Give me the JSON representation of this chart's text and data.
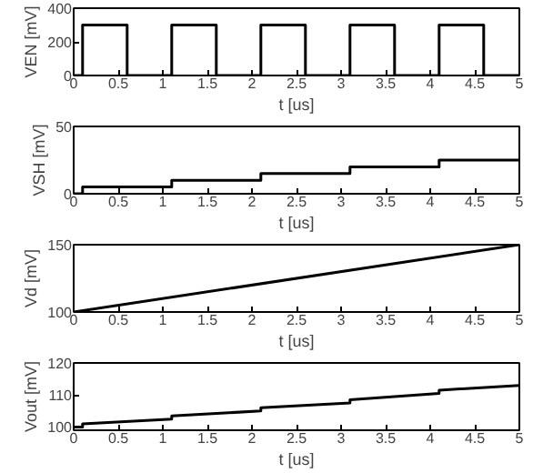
{
  "chart_data": [
    {
      "type": "line",
      "xlabel": "t [us]",
      "ylabel": "VEN [mV]",
      "xlim": [
        0,
        5
      ],
      "ylim": [
        0,
        400
      ],
      "xticks": [
        0,
        0.5,
        1,
        1.5,
        2,
        2.5,
        3,
        3.5,
        4,
        4.5,
        5
      ],
      "yticks": [
        0,
        200,
        400
      ],
      "grid": false,
      "series": [
        {
          "color": "#000000",
          "x": [
            0,
            0.1,
            0.1,
            0.6,
            0.6,
            1.1,
            1.1,
            1.6,
            1.6,
            2.1,
            2.1,
            2.6,
            2.6,
            3.1,
            3.1,
            3.6,
            3.6,
            4.1,
            4.1,
            4.6,
            4.6,
            5
          ],
          "values": [
            0,
            0,
            300,
            300,
            0,
            0,
            300,
            300,
            0,
            0,
            300,
            300,
            0,
            0,
            300,
            300,
            0,
            0,
            300,
            300,
            0,
            0
          ]
        }
      ]
    },
    {
      "type": "line",
      "xlabel": "t [us]",
      "ylabel": "VSH [mV]",
      "xlim": [
        0,
        5
      ],
      "ylim": [
        0,
        50
      ],
      "xticks": [
        0,
        0.5,
        1,
        1.5,
        2,
        2.5,
        3,
        3.5,
        4,
        4.5,
        5
      ],
      "yticks": [
        0,
        50
      ],
      "grid": false,
      "series": [
        {
          "color": "#000000",
          "x": [
            0,
            0.1,
            0.1,
            1.1,
            1.1,
            2.1,
            2.1,
            3.1,
            3.1,
            4.1,
            4.1,
            5
          ],
          "values": [
            0,
            0,
            5,
            5,
            10,
            10,
            15,
            15,
            20,
            20,
            25,
            25
          ]
        }
      ]
    },
    {
      "type": "line",
      "xlabel": "t [us]",
      "ylabel": "Vd [mV]",
      "xlim": [
        0,
        5
      ],
      "ylim": [
        100,
        150
      ],
      "xticks": [
        0,
        0.5,
        1,
        1.5,
        2,
        2.5,
        3,
        3.5,
        4,
        4.5,
        5
      ],
      "yticks": [
        100,
        150
      ],
      "grid": false,
      "series": [
        {
          "color": "#000000",
          "x": [
            0,
            5
          ],
          "values": [
            100,
            150
          ]
        }
      ]
    },
    {
      "type": "line",
      "xlabel": "t [us]",
      "ylabel": "Vout [mV]",
      "xlim": [
        0,
        5
      ],
      "ylim": [
        99,
        120
      ],
      "xticks": [
        0,
        0.5,
        1,
        1.5,
        2,
        2.5,
        3,
        3.5,
        4,
        4.5,
        5
      ],
      "yticks": [
        100,
        110,
        120
      ],
      "grid": false,
      "series": [
        {
          "color": "#000000",
          "x": [
            0,
            0.1,
            0.1,
            1.1,
            1.1,
            2.1,
            2.1,
            3.1,
            3.1,
            4.1,
            4.1,
            5
          ],
          "values": [
            100,
            100,
            101,
            102.5,
            103.5,
            105,
            106,
            107.5,
            108.5,
            110.5,
            111.5,
            113
          ]
        }
      ]
    }
  ]
}
